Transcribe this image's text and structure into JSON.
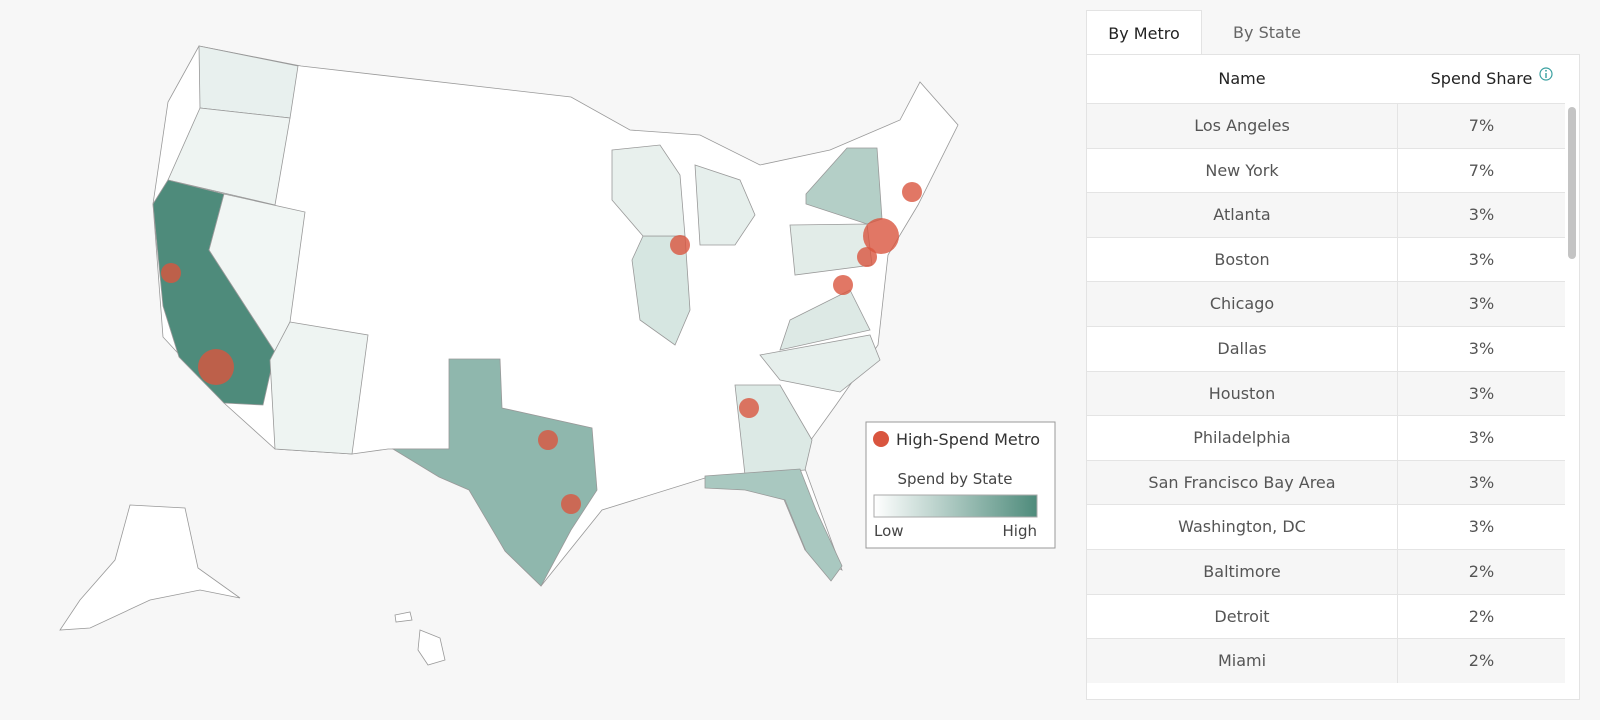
{
  "tabs": [
    "By Metro",
    "By State"
  ],
  "table": {
    "columns": [
      "Name",
      "Spend Share"
    ],
    "rows": [
      [
        "Los Angeles",
        "7%"
      ],
      [
        "New York",
        "7%"
      ],
      [
        "Atlanta",
        "3%"
      ],
      [
        "Boston",
        "3%"
      ],
      [
        "Chicago",
        "3%"
      ],
      [
        "Dallas",
        "3%"
      ],
      [
        "Houston",
        "3%"
      ],
      [
        "Philadelphia",
        "3%"
      ],
      [
        "San Francisco Bay Area",
        "3%"
      ],
      [
        "Washington, DC",
        "3%"
      ],
      [
        "Baltimore",
        "2%"
      ],
      [
        "Detroit",
        "2%"
      ],
      [
        "Miami",
        "2%"
      ]
    ]
  },
  "legend": {
    "metro": "High-Spend Metro",
    "title": "Spend by State",
    "low": "Low",
    "high": "High"
  }
}
